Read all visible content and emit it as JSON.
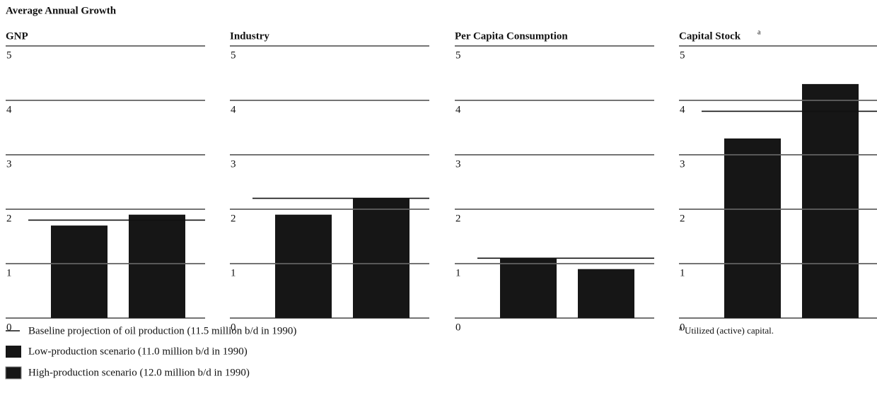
{
  "title": "Average Annual Growth",
  "legend": {
    "baseline": "Baseline projection of oil production (11.5 million b/d in 1990)",
    "low": "Low-production scenario (11.0 million b/d in 1990)",
    "high": "High-production scenario (12.0 million b/d in 1990)"
  },
  "colors": {
    "bars": "#161616",
    "baseline": "#111111"
  },
  "footnote": {
    "marker": "a",
    "text": "Utilized (active) capital."
  },
  "chart_data": [
    {
      "type": "bar",
      "title": "GNP",
      "ylim": [
        0,
        5
      ],
      "yticks": [
        0,
        1,
        2,
        3,
        4,
        5
      ],
      "values": [
        1.7,
        1.9
      ],
      "baseline": 1.8
    },
    {
      "type": "bar",
      "title": "Industry",
      "ylim": [
        0,
        5
      ],
      "yticks": [
        0,
        1,
        2,
        3,
        4,
        5
      ],
      "values": [
        1.9,
        2.2
      ],
      "baseline": 2.2
    },
    {
      "type": "bar",
      "title": "Per Capita Consumption",
      "ylim": [
        0,
        5
      ],
      "yticks": [
        0,
        1,
        2,
        3,
        4,
        5
      ],
      "values": [
        1.1,
        0.9
      ],
      "baseline": 1.1
    },
    {
      "type": "bar",
      "title": "Capital Stock",
      "title_note": "a",
      "ylim": [
        0,
        5
      ],
      "yticks": [
        0,
        1,
        2,
        3,
        4,
        5
      ],
      "values": [
        3.3,
        4.3
      ],
      "baseline": 3.8
    }
  ]
}
